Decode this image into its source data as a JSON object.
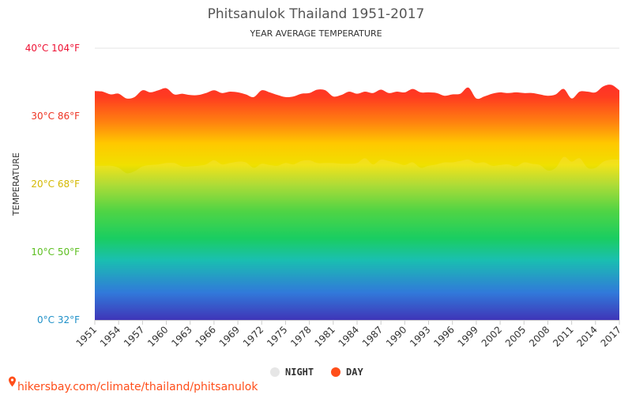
{
  "header": {
    "title": "Phitsanulok Thailand 1951-2017",
    "subtitle": "YEAR AVERAGE TEMPERATURE"
  },
  "source_text": "hikersbay.com/climate/thailand/phitsanulok",
  "colors": {
    "night_legend": "#e6e6e6",
    "day_legend": "#ff4e1a",
    "credit": "#ff4e1a",
    "grid": "#e6e6e6"
  },
  "chart_data": {
    "type": "area",
    "title": "Phitsanulok Thailand 1951-2017",
    "subtitle": "YEAR AVERAGE TEMPERATURE",
    "ylabel": "TEMPERATURE",
    "xlabel": "",
    "ylim": [
      0,
      40
    ],
    "xlim": [
      1951,
      2017
    ],
    "grid": true,
    "legend_position": "bottom",
    "y_ticks": [
      {
        "value": 0,
        "label": "0°C 32°F",
        "color": "#1e90c8"
      },
      {
        "value": 10,
        "label": "10°C 50°F",
        "color": "#5cbf20"
      },
      {
        "value": 20,
        "label": "20°C 68°F",
        "color": "#d4b800"
      },
      {
        "value": 30,
        "label": "30°C 86°F",
        "color": "#ee3322"
      },
      {
        "value": 40,
        "label": "40°C 104°F",
        "color": "#ee1133"
      }
    ],
    "x_ticks": [
      "1951",
      "1954",
      "1957",
      "1960",
      "1963",
      "1966",
      "1969",
      "1972",
      "1975",
      "1978",
      "1981",
      "1984",
      "1987",
      "1990",
      "1993",
      "1996",
      "1999",
      "2002",
      "2005",
      "2008",
      "2011",
      "2014",
      "2017"
    ],
    "x": [
      1951,
      1952,
      1953,
      1954,
      1955,
      1956,
      1957,
      1958,
      1959,
      1960,
      1961,
      1962,
      1963,
      1964,
      1965,
      1966,
      1967,
      1968,
      1969,
      1970,
      1971,
      1972,
      1973,
      1974,
      1975,
      1976,
      1977,
      1978,
      1979,
      1980,
      1981,
      1982,
      1983,
      1984,
      1985,
      1986,
      1987,
      1988,
      1989,
      1990,
      1991,
      1992,
      1993,
      1994,
      1995,
      1996,
      1997,
      1998,
      1999,
      2000,
      2001,
      2002,
      2003,
      2004,
      2005,
      2006,
      2007,
      2008,
      2009,
      2010,
      2011,
      2012,
      2013,
      2014,
      2015,
      2016,
      2017
    ],
    "series": [
      {
        "name": "NIGHT",
        "values": [
          22.7,
          22.7,
          22.7,
          22.4,
          21.6,
          21.9,
          22.6,
          22.8,
          22.9,
          23.1,
          23.1,
          22.6,
          22.6,
          22.7,
          22.9,
          23.5,
          22.9,
          23.1,
          23.3,
          23.2,
          22.4,
          23.0,
          22.8,
          22.7,
          23.1,
          22.9,
          23.4,
          23.5,
          23.1,
          23.1,
          23.1,
          23.0,
          23.0,
          23.1,
          23.8,
          22.9,
          23.6,
          23.4,
          23.1,
          22.8,
          23.2,
          22.4,
          22.7,
          22.9,
          23.2,
          23.2,
          23.4,
          23.6,
          23.1,
          23.2,
          22.7,
          22.8,
          22.9,
          22.6,
          23.2,
          23.0,
          22.8,
          22.0,
          22.4,
          24.0,
          23.3,
          23.8,
          22.4,
          22.4,
          23.3,
          23.6,
          23.6
        ]
      },
      {
        "name": "DAY",
        "values": [
          33.7,
          33.6,
          33.2,
          33.3,
          32.6,
          32.8,
          33.8,
          33.5,
          33.8,
          34.1,
          33.2,
          33.3,
          33.1,
          33.1,
          33.4,
          33.8,
          33.4,
          33.6,
          33.5,
          33.2,
          32.8,
          33.8,
          33.5,
          33.1,
          32.8,
          32.9,
          33.3,
          33.4,
          33.9,
          33.8,
          32.9,
          33.1,
          33.6,
          33.3,
          33.6,
          33.4,
          33.9,
          33.4,
          33.6,
          33.5,
          34.0,
          33.5,
          33.5,
          33.4,
          33.0,
          33.2,
          33.3,
          34.2,
          32.6,
          32.9,
          33.3,
          33.5,
          33.4,
          33.5,
          33.4,
          33.4,
          33.2,
          33.0,
          33.2,
          34.0,
          32.6,
          33.6,
          33.6,
          33.5,
          34.4,
          34.6,
          33.8
        ]
      }
    ]
  }
}
